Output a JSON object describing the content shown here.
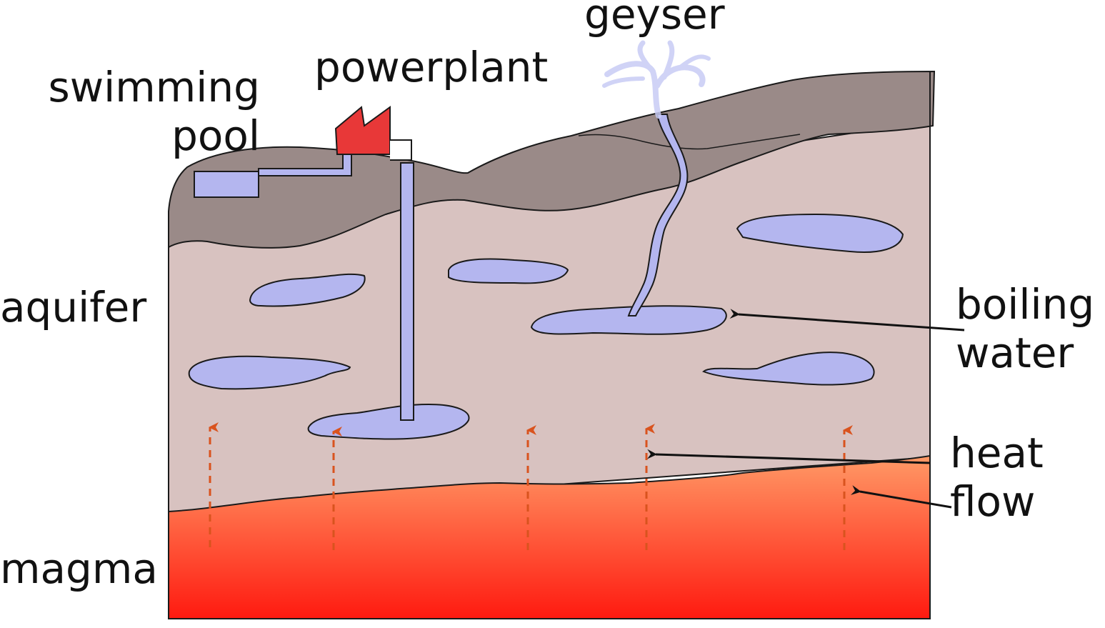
{
  "labels": {
    "swimming_pool_line1": "swimming",
    "swimming_pool_line2": "pool",
    "powerplant": "powerplant",
    "geyser": "geyser",
    "aquifer": "aquifer",
    "boiling_water_line1": "boiling",
    "boiling_water_line2": "water",
    "heat_flow_line1": "heat",
    "heat_flow_line2": "flow",
    "magma": "magma"
  },
  "colors": {
    "surface_rock": "#9a8a88",
    "aquifer_layer": "#d8c2c0",
    "water": "#b4b6ef",
    "magma_top": "#ff9966",
    "magma_bottom": "#ff1a10",
    "powerplant": "#e83838",
    "heat_arrows": "#d9531e",
    "outline": "#1a1a1a"
  }
}
